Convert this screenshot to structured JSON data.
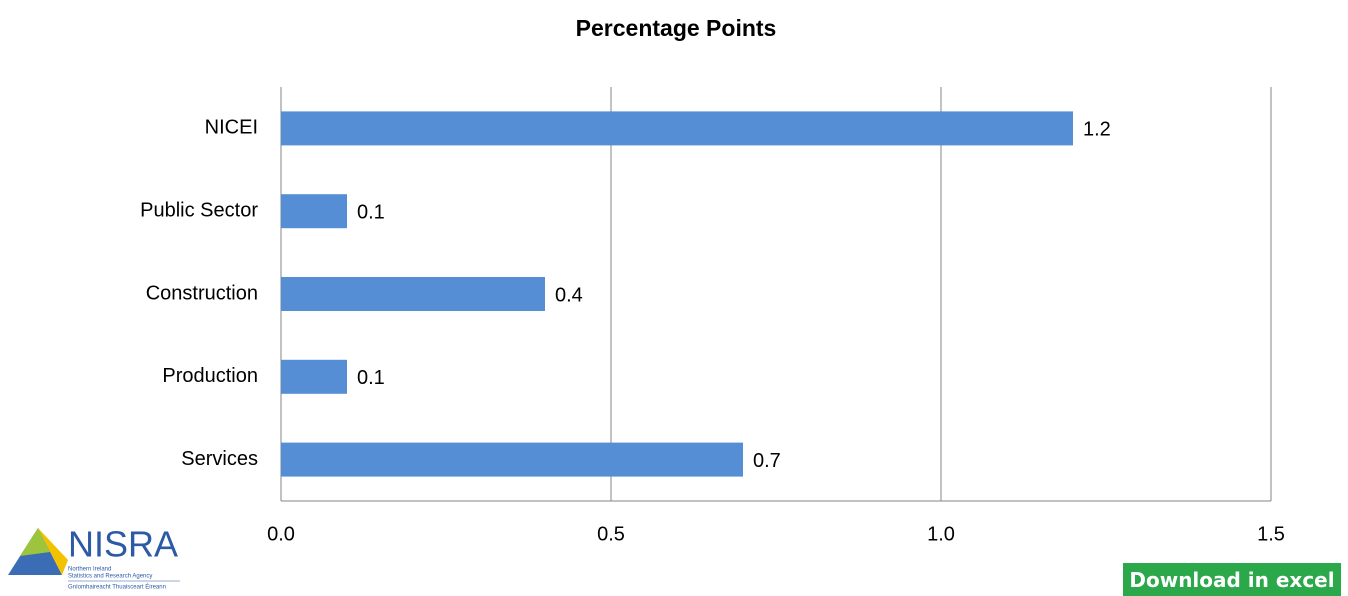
{
  "chart_data": {
    "type": "bar",
    "orientation": "horizontal",
    "title": "Percentage Points",
    "categories": [
      "NICEI",
      "Public Sector",
      "Construction",
      "Production",
      "Services"
    ],
    "values": [
      1.2,
      0.1,
      0.4,
      0.1,
      0.7
    ],
    "color": "#558ed5",
    "xlim": [
      0,
      1.5
    ],
    "xticks": [
      {
        "value": 0,
        "label": "0.0"
      },
      0.5,
      {
        "value": 1,
        "label": "1.0"
      },
      1.5
    ],
    "grid": true
  },
  "logo": {
    "name": "NISRA",
    "subtitle_1": "Northern Ireland",
    "subtitle_2": "Statistics and Research Agency",
    "irish": "Gníomhaireacht Thuaisceart Éireann"
  },
  "download_button": "Download in excel"
}
